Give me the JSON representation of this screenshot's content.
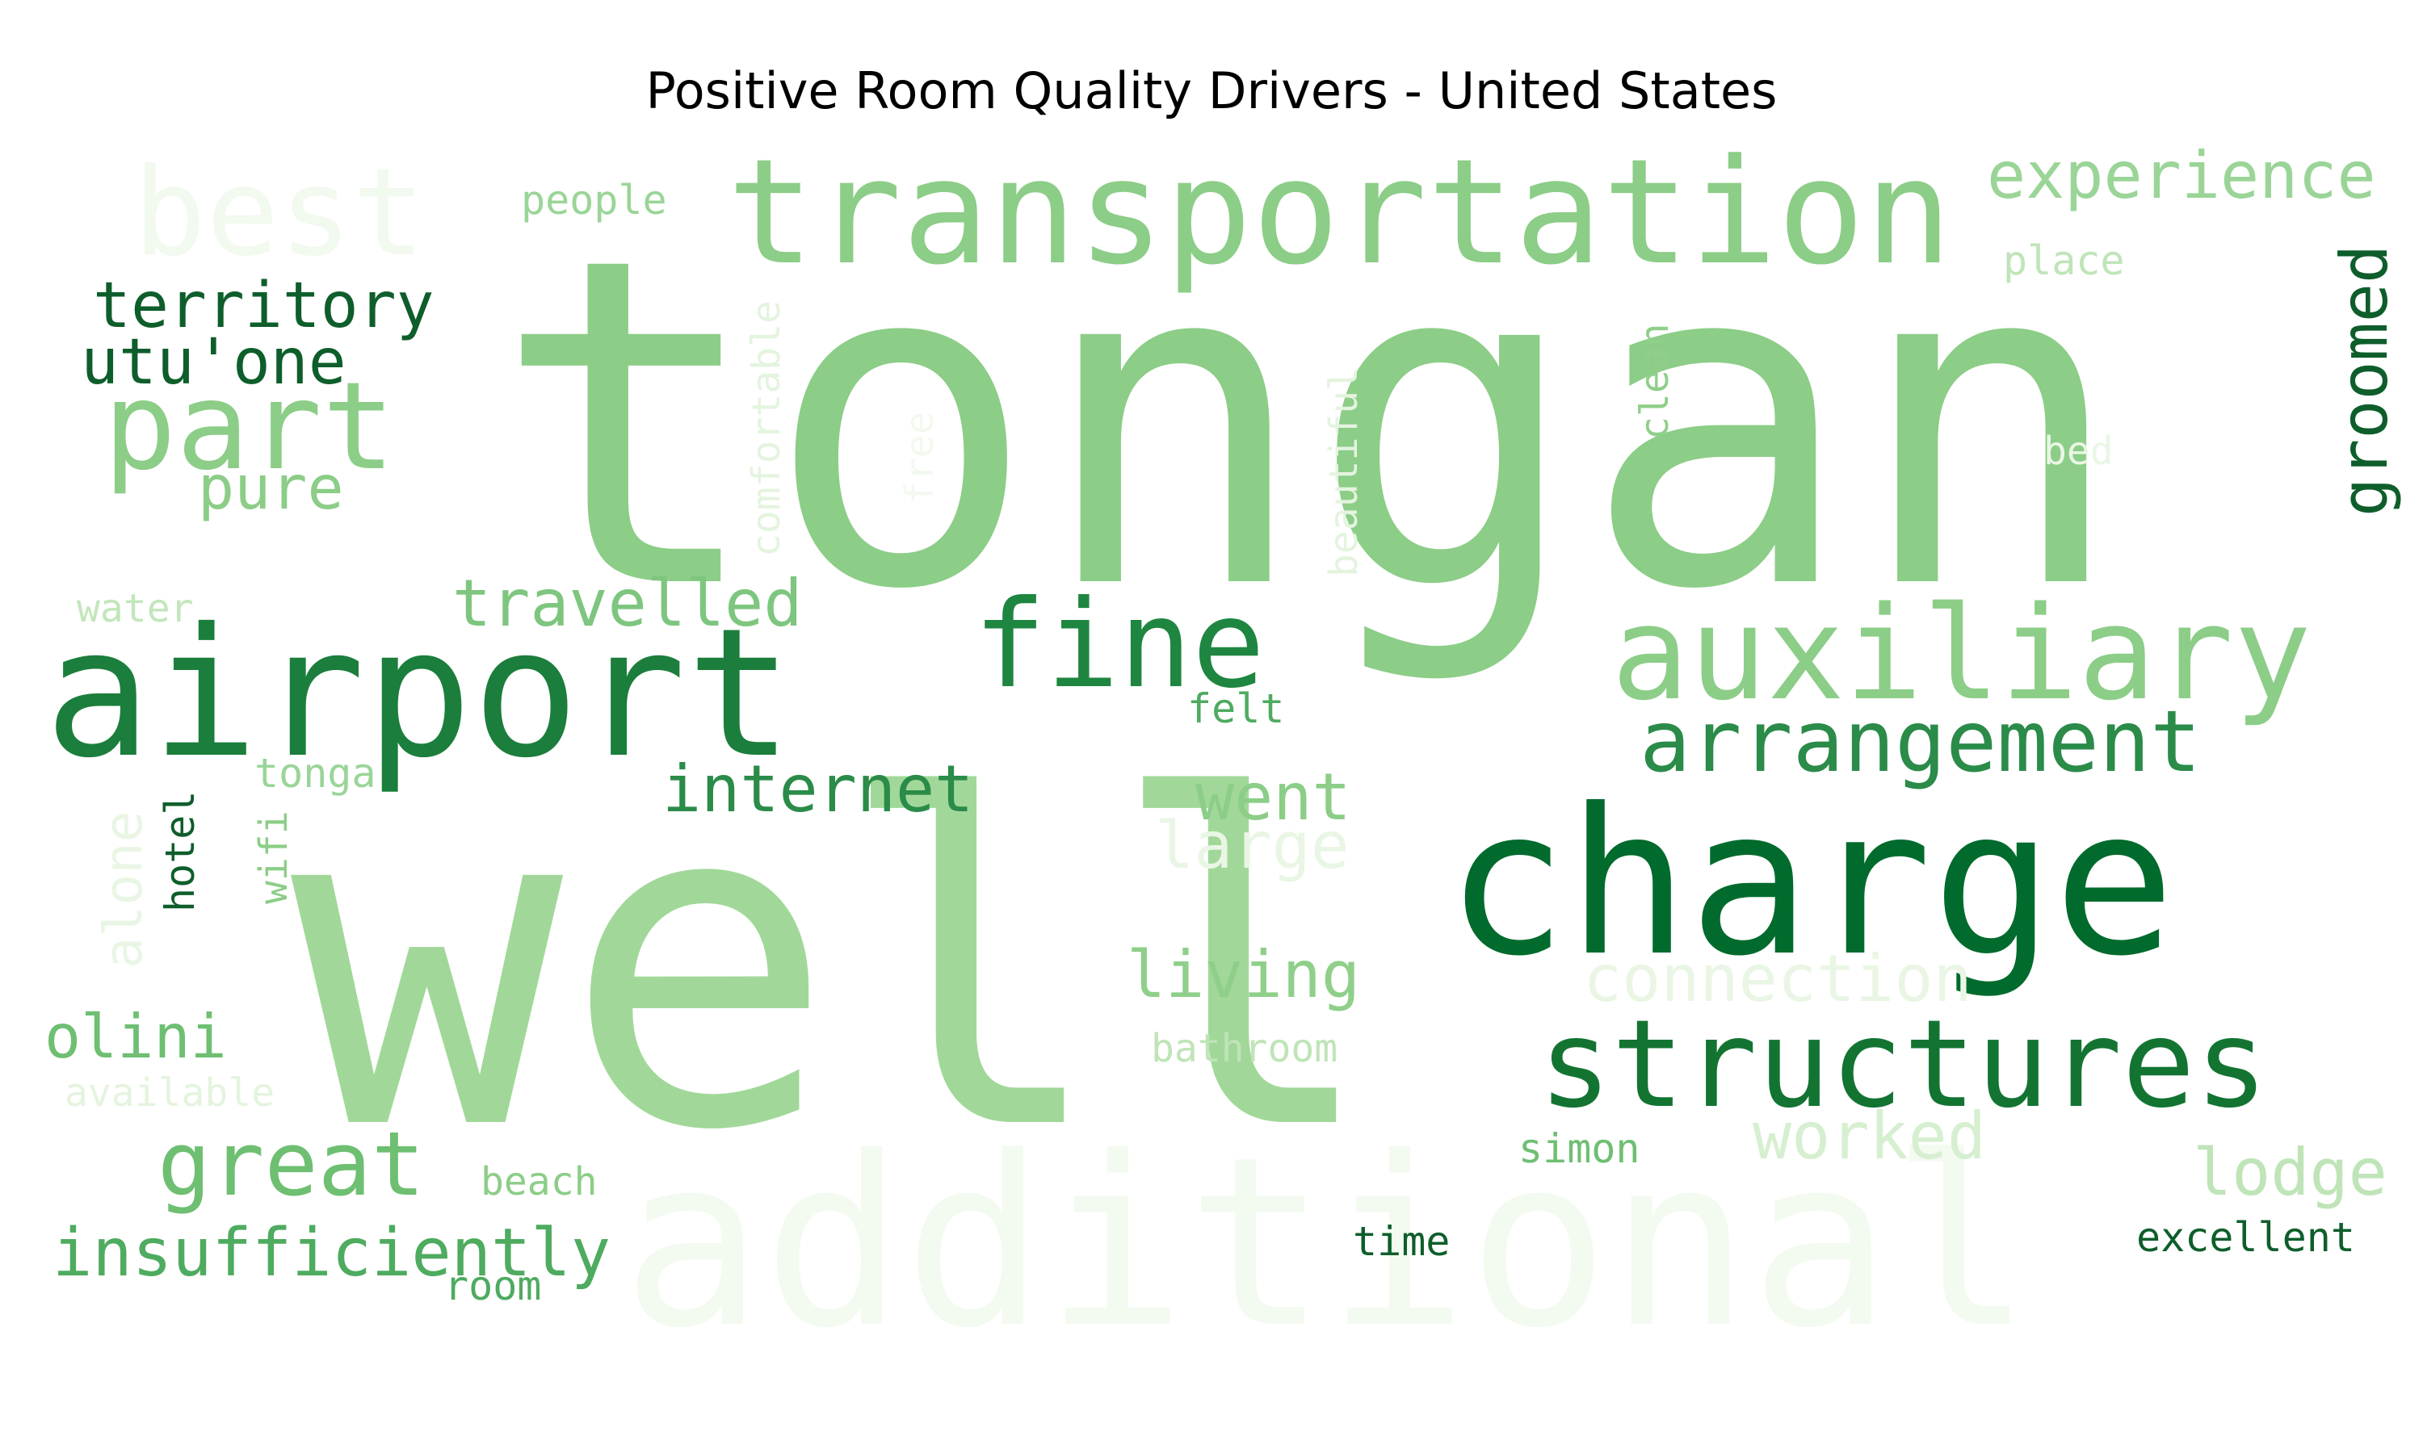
{
  "chart_data": {
    "type": "wordcloud",
    "title": "Positive Room Quality Drivers - United States",
    "colormap": "Greens",
    "words": [
      {
        "text": "tongan",
        "shade": "#8ccd87"
      },
      {
        "text": "well",
        "shade": "#a1d899"
      },
      {
        "text": "additional",
        "shade": "#f3faf0"
      },
      {
        "text": "charge",
        "shade": "#006b2c"
      },
      {
        "text": "airport",
        "shade": "#1b7e3c"
      },
      {
        "text": "transportation",
        "shade": "#8ccd87"
      },
      {
        "text": "auxiliary",
        "shade": "#8ccd87"
      },
      {
        "text": "structures",
        "shade": "#137432"
      },
      {
        "text": "fine",
        "shade": "#1e8640"
      },
      {
        "text": "part",
        "shade": "#8ccd87"
      },
      {
        "text": "best",
        "shade": "#f2f9ef"
      },
      {
        "text": "arrangement",
        "shade": "#2b8b49"
      },
      {
        "text": "territory",
        "shade": "#0e5e2b"
      },
      {
        "text": "utu'one",
        "shade": "#0e5e2b"
      },
      {
        "text": "great",
        "shade": "#6ebf72"
      },
      {
        "text": "insufficiently",
        "shade": "#4eab5f"
      },
      {
        "text": "experience",
        "shade": "#9ad597"
      },
      {
        "text": "internet",
        "shade": "#2b8b49"
      },
      {
        "text": "travelled",
        "shade": "#7ec67f"
      },
      {
        "text": "living",
        "shade": "#8fcf8a"
      },
      {
        "text": "pure",
        "shade": "#8ccd87"
      },
      {
        "text": "olini",
        "shade": "#6ebf72"
      },
      {
        "text": "went",
        "shade": "#8ccd87"
      },
      {
        "text": "large",
        "shade": "#eaf6e5"
      },
      {
        "text": "connection",
        "shade": "#eaf6e5"
      },
      {
        "text": "worked",
        "shade": "#d6efd0"
      },
      {
        "text": "lodge",
        "shade": "#bfe4b8"
      },
      {
        "text": "groomed",
        "shade": "#0e5e2b"
      },
      {
        "text": "people",
        "shade": "#9ad597"
      },
      {
        "text": "place",
        "shade": "#bfe4b8"
      },
      {
        "text": "comfortable",
        "shade": "#e4f4df"
      },
      {
        "text": "free",
        "shade": "#f2f9ef"
      },
      {
        "text": "beautiful",
        "shade": "#e4f4df"
      },
      {
        "text": "clean",
        "shade": "#8fcf8a"
      },
      {
        "text": "bed",
        "shade": "#eaf6e5"
      },
      {
        "text": "water",
        "shade": "#c2e6bb"
      },
      {
        "text": "felt",
        "shade": "#4eab5f"
      },
      {
        "text": "tonga",
        "shade": "#9ad597"
      },
      {
        "text": "alone",
        "shade": "#eaf6e5"
      },
      {
        "text": "hotel",
        "shade": "#0e5e2b"
      },
      {
        "text": "wifi",
        "shade": "#8ccd87"
      },
      {
        "text": "bathroom",
        "shade": "#bfe4b8"
      },
      {
        "text": "available",
        "shade": "#e4f4df"
      },
      {
        "text": "beach",
        "shade": "#8ccd87"
      },
      {
        "text": "room",
        "shade": "#4eab5f"
      },
      {
        "text": "simon",
        "shade": "#6ebf72"
      },
      {
        "text": "time",
        "shade": "#0e5e2b"
      },
      {
        "text": "excellent",
        "shade": "#0e5e2b"
      }
    ]
  }
}
